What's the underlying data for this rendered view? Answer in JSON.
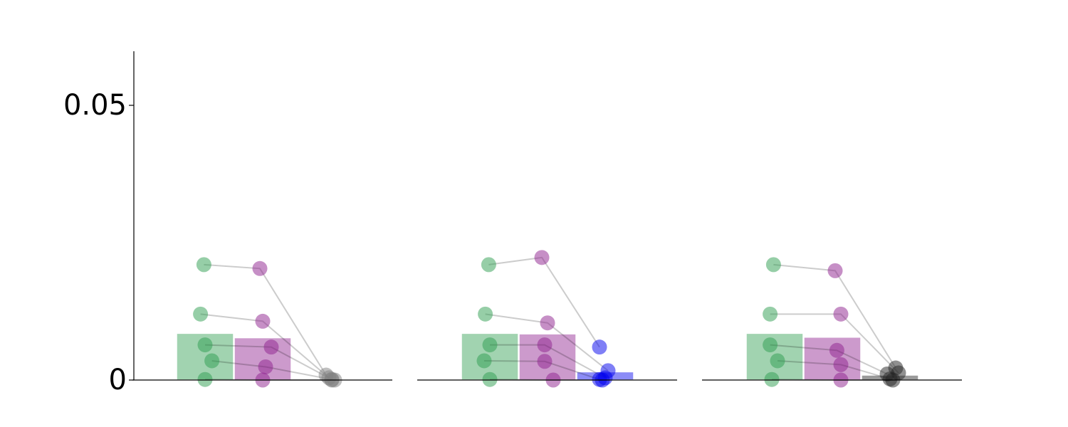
{
  "chart_data": [
    {
      "type": "bar",
      "panel": "left",
      "ylim": [
        0,
        0.06
      ],
      "yticks": [
        {
          "value": 0,
          "label": "0"
        },
        {
          "value": 0.05,
          "label": "0.05"
        }
      ],
      "show_y_axis": true,
      "groups": [
        {
          "color": "#2e9e4f",
          "bar": 0.0085,
          "points": [
            {
              "x": -0.02,
              "y": 0.021
            },
            {
              "x": -0.08,
              "y": 0.012
            },
            {
              "x": 0.0,
              "y": 0.0064
            },
            {
              "x": 0.12,
              "y": 0.0035
            },
            {
              "x": 0.0,
              "y": 0.0001
            }
          ]
        },
        {
          "color": "#8e1f8e",
          "bar": 0.0077,
          "points": [
            {
              "x": -0.05,
              "y": 0.0203
            },
            {
              "x": 0.0,
              "y": 0.0107
            },
            {
              "x": 0.15,
              "y": 0.006
            },
            {
              "x": 0.05,
              "y": 0.0024
            },
            {
              "x": 0.0,
              "y": 0.0
            }
          ]
        },
        {
          "color": "#7f7f7f",
          "bar": 0.0002,
          "points": [
            {
              "x": 0.1,
              "y": 0.0009
            },
            {
              "x": 0.15,
              "y": 0.0004
            },
            {
              "x": 0.2,
              "y": 0.0001
            },
            {
              "x": 0.25,
              "y": 0.0
            },
            {
              "x": 0.2,
              "y": 0.0
            }
          ]
        }
      ]
    },
    {
      "type": "bar",
      "panel": "middle",
      "ylim": [
        0,
        0.06
      ],
      "show_y_axis": false,
      "groups": [
        {
          "color": "#2e9e4f",
          "bar": 0.0085,
          "points": [
            {
              "x": -0.02,
              "y": 0.021
            },
            {
              "x": -0.08,
              "y": 0.012
            },
            {
              "x": 0.0,
              "y": 0.0064
            },
            {
              "x": -0.1,
              "y": 0.0035
            },
            {
              "x": 0.0,
              "y": 0.0001
            }
          ]
        },
        {
          "color": "#8e1f8e",
          "bar": 0.0084,
          "points": [
            {
              "x": -0.1,
              "y": 0.0223
            },
            {
              "x": 0.0,
              "y": 0.0104
            },
            {
              "x": -0.05,
              "y": 0.0064
            },
            {
              "x": -0.05,
              "y": 0.0034
            },
            {
              "x": 0.1,
              "y": 0.0
            }
          ]
        },
        {
          "color": "#0000ee",
          "bar": 0.0015,
          "points": [
            {
              "x": -0.1,
              "y": 0.006
            },
            {
              "x": 0.05,
              "y": 0.0017
            },
            {
              "x": 0.0,
              "y": 0.0004
            },
            {
              "x": -0.1,
              "y": 0.0001
            },
            {
              "x": -0.05,
              "y": 0.0
            }
          ]
        }
      ]
    },
    {
      "type": "bar",
      "panel": "right",
      "ylim": [
        0,
        0.06
      ],
      "show_y_axis": false,
      "groups": [
        {
          "color": "#2e9e4f",
          "bar": 0.0085,
          "points": [
            {
              "x": -0.02,
              "y": 0.021
            },
            {
              "x": -0.08,
              "y": 0.012
            },
            {
              "x": -0.08,
              "y": 0.0064
            },
            {
              "x": 0.05,
              "y": 0.0035
            },
            {
              "x": -0.05,
              "y": 0.0001
            }
          ]
        },
        {
          "color": "#8e1f8e",
          "bar": 0.0078,
          "points": [
            {
              "x": 0.05,
              "y": 0.0199
            },
            {
              "x": 0.15,
              "y": 0.012
            },
            {
              "x": 0.08,
              "y": 0.0054
            },
            {
              "x": 0.15,
              "y": 0.0028
            },
            {
              "x": 0.15,
              "y": 0.0
            }
          ]
        },
        {
          "color": "#222222",
          "bar": 0.0009,
          "points": [
            {
              "x": 0.1,
              "y": 0.0022
            },
            {
              "x": 0.15,
              "y": 0.0013
            },
            {
              "x": -0.05,
              "y": 0.0011
            },
            {
              "x": 0.0,
              "y": 0.0002
            },
            {
              "x": 0.05,
              "y": 0.0
            }
          ]
        }
      ]
    }
  ]
}
